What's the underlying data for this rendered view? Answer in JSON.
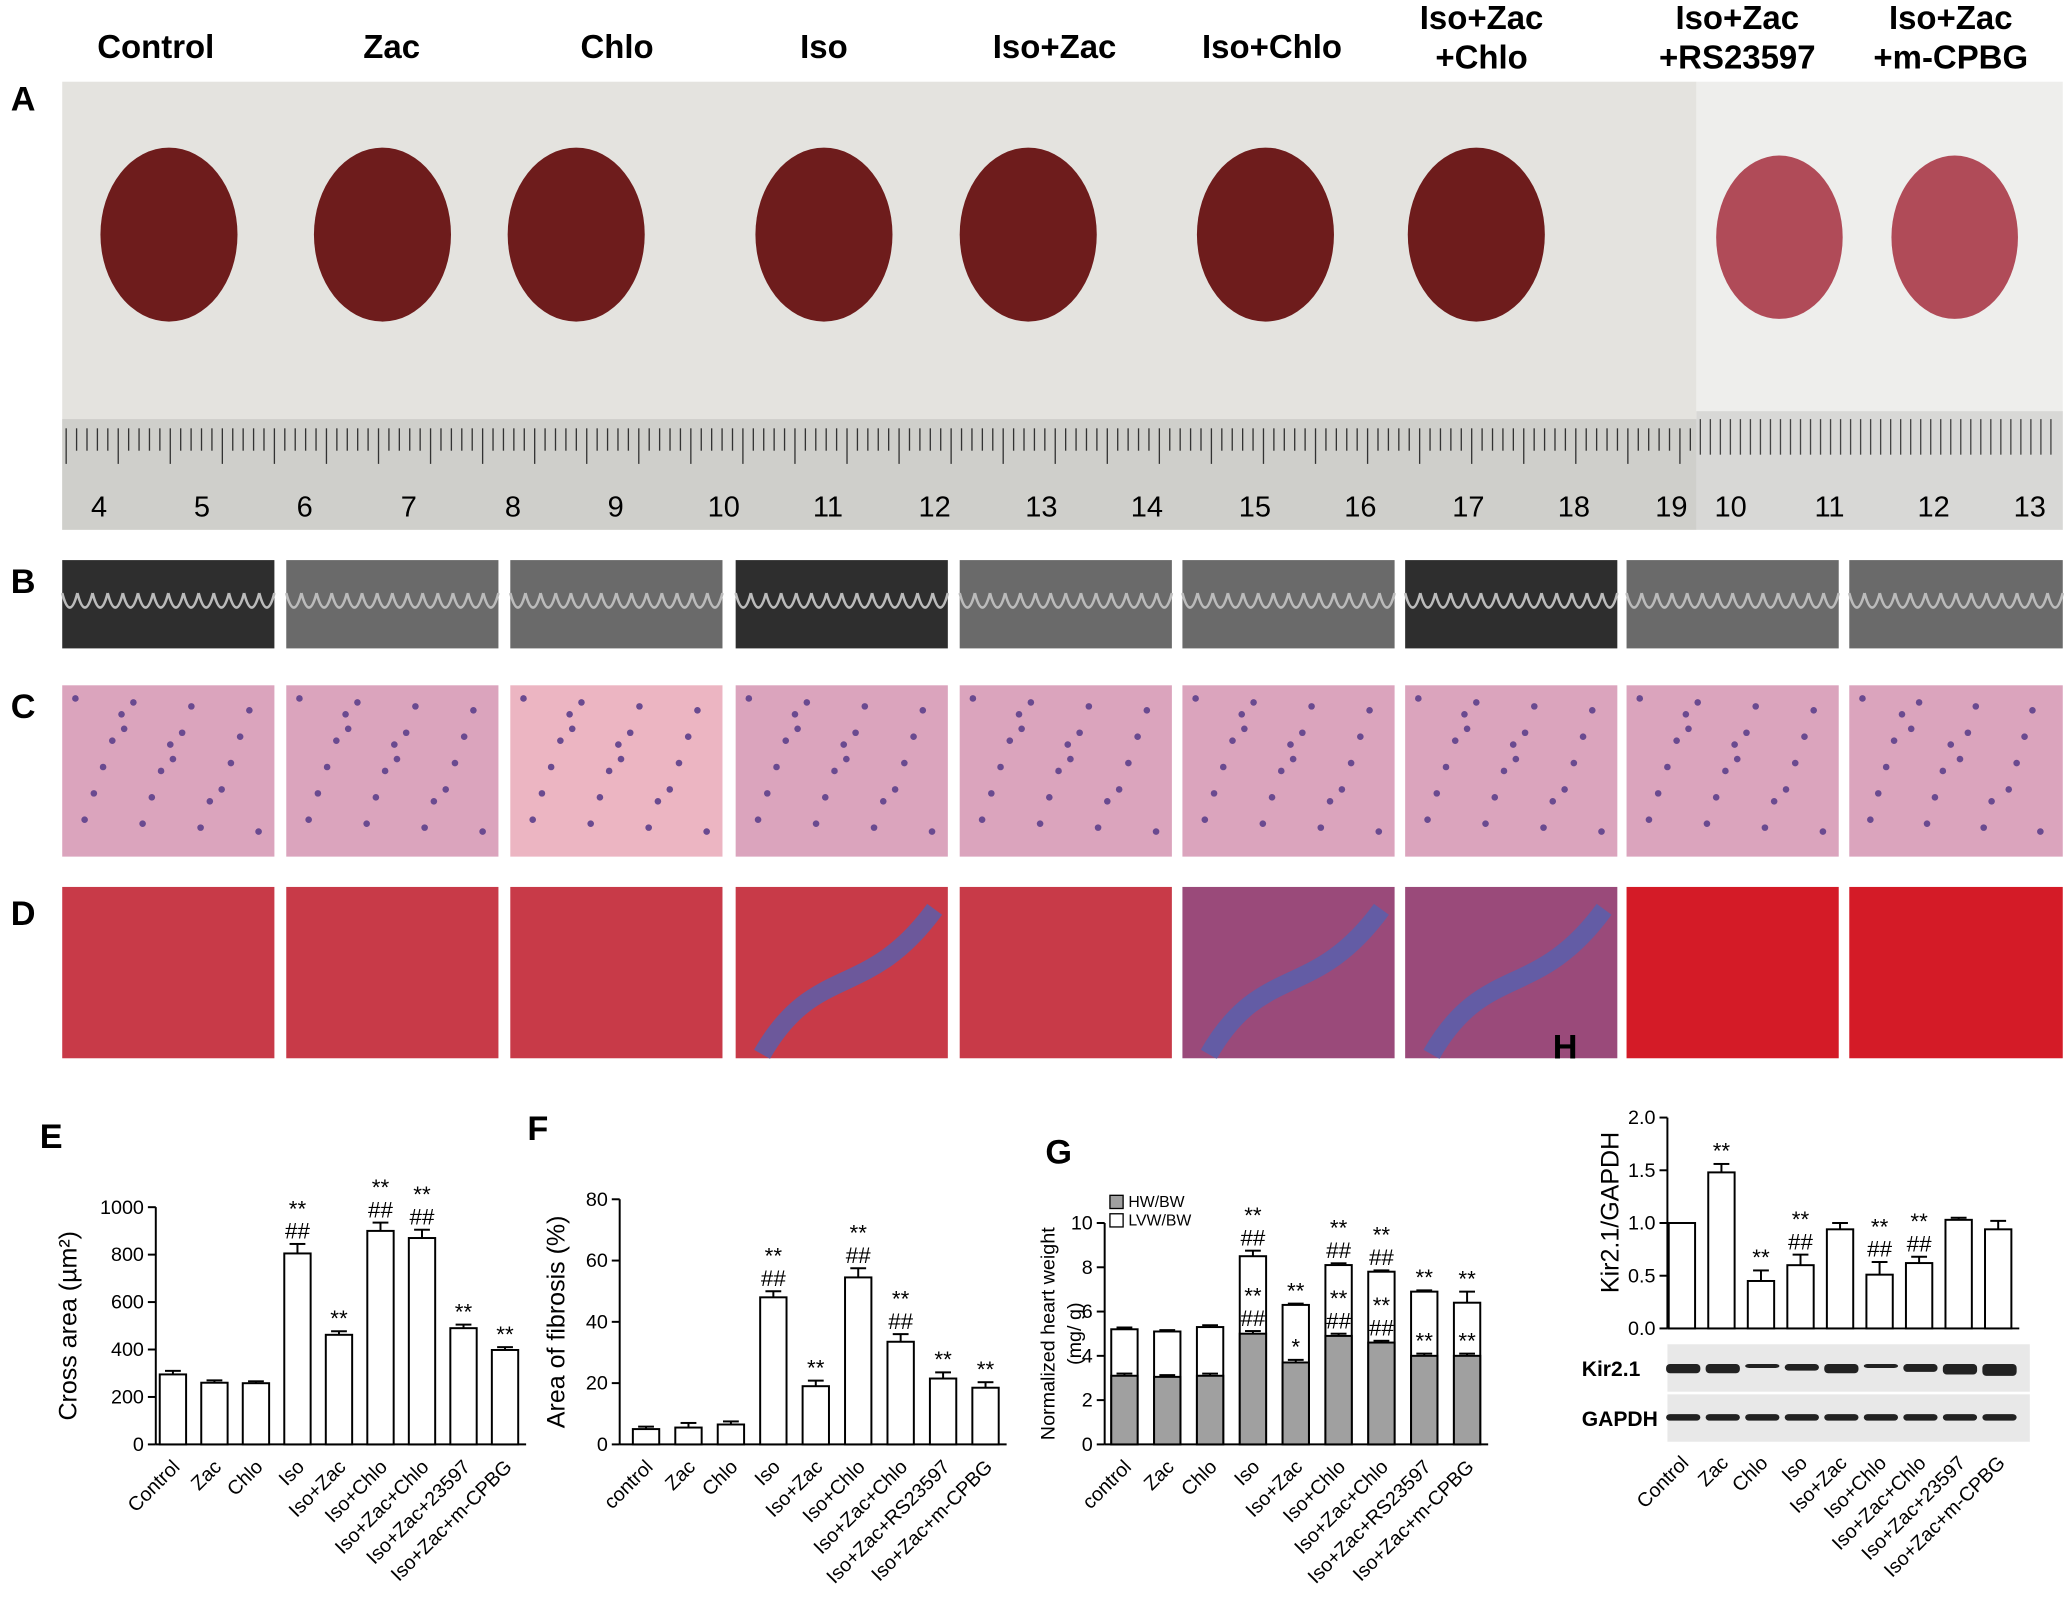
{
  "figure": {
    "groups": [
      [
        "Control"
      ],
      [
        "Zac"
      ],
      [
        "Chlo"
      ],
      [
        "Iso"
      ],
      [
        "Iso+Zac"
      ],
      [
        "Iso+Chlo"
      ],
      [
        "Iso+Zac",
        "+Chlo"
      ],
      [
        "Iso+Zac",
        "+RS23597"
      ],
      [
        "Iso+Zac",
        "+m-CPBG"
      ]
    ],
    "panel_labels": [
      "A",
      "B",
      "C",
      "D"
    ],
    "ruler_labels": [
      "4",
      "5",
      "6",
      "7",
      "8",
      "9",
      "10",
      "11",
      "12",
      "13",
      "14",
      "15",
      "16",
      "17",
      "18",
      "19",
      "10",
      "11",
      "12",
      "13"
    ]
  },
  "chart_data": [
    {
      "type": "bar",
      "panel": "E",
      "ylabel": [
        "Cross area (µm²)"
      ],
      "categories": [
        "Control",
        "Zac",
        "Chlo",
        "Iso",
        "Iso+Zac",
        "Iso+Chlo",
        "Iso+Zac+Chlo",
        "Iso+Zac+23597",
        "Iso+Zac+m-CPBG"
      ],
      "values": [
        295,
        260,
        258,
        805,
        462,
        900,
        870,
        490,
        398
      ],
      "errors": [
        15,
        10,
        8,
        40,
        15,
        35,
        35,
        15,
        12
      ],
      "color": "#ffffff",
      "significance": [
        null,
        null,
        null,
        [
          "**",
          "##"
        ],
        [
          "**"
        ],
        [
          "**",
          "##"
        ],
        [
          "**",
          "##"
        ],
        [
          "**"
        ],
        [
          "**"
        ]
      ],
      "ylim": [
        0,
        1000
      ],
      "yticks": [
        0,
        200,
        400,
        600,
        800,
        1000
      ]
    },
    {
      "type": "bar",
      "panel": "F",
      "ylabel": [
        "Area of fibrosis (%)"
      ],
      "categories": [
        "control",
        "Zac",
        "Chlo",
        "Iso",
        "Iso+Zac",
        "Iso+Chlo",
        "Iso+Zac+Chlo",
        "Iso+Zac+RS23597",
        "Iso+Zac+m-CPBG"
      ],
      "values": [
        5,
        5.5,
        6.5,
        48,
        19,
        54.5,
        33.5,
        21.5,
        18.5
      ],
      "errors": [
        0.8,
        1.5,
        1,
        2,
        1.8,
        3,
        2.5,
        2,
        1.8
      ],
      "color": "#ffffff",
      "significance": [
        null,
        null,
        null,
        [
          "**",
          "##"
        ],
        [
          "**"
        ],
        [
          "**",
          "##"
        ],
        [
          "**",
          "##"
        ],
        [
          "**"
        ],
        [
          "**"
        ]
      ],
      "ylim": [
        0,
        80
      ],
      "yticks": [
        0,
        20,
        40,
        60,
        80
      ]
    },
    {
      "type": "bar",
      "panel": "G",
      "ylabel": [
        "Normalized heart weight",
        "(mg/ g)"
      ],
      "categories": [
        "control",
        "Zac",
        "Chlo",
        "Iso",
        "Iso+Zac",
        "Iso+Chlo",
        "Iso+Zac+Chlo",
        "Iso+Zac+RS23597",
        "Iso+Zac+m-CPBG"
      ],
      "series": [
        {
          "name": "HW/BW",
          "color": "#a0a0a0",
          "values": [
            3.1,
            3.05,
            3.1,
            5.0,
            3.7,
            4.9,
            4.6,
            4.0,
            4.0
          ],
          "errors": [
            0.1,
            0.08,
            0.1,
            0.12,
            0.12,
            0.1,
            0.08,
            0.1,
            0.1
          ],
          "significance": [
            null,
            null,
            null,
            [
              "**",
              "##"
            ],
            [
              "*"
            ],
            [
              "**",
              "##"
            ],
            [
              "**",
              "##"
            ],
            [
              "**"
            ],
            [
              "**"
            ]
          ]
        },
        {
          "name": "LVW/BW",
          "color": "#ffffff",
          "values": [
            5.2,
            5.1,
            5.3,
            8.5,
            6.3,
            8.1,
            7.8,
            6.9,
            6.4
          ],
          "errors": [
            0.08,
            0.06,
            0.08,
            0.25,
            0.06,
            0.08,
            0.06,
            0.06,
            0.5
          ],
          "significance": [
            null,
            null,
            null,
            [
              "**",
              "##"
            ],
            [
              "**"
            ],
            [
              "**",
              "##"
            ],
            [
              "**",
              "##"
            ],
            [
              "**"
            ],
            [
              "**"
            ]
          ]
        }
      ],
      "ylim": [
        0,
        10
      ],
      "yticks": [
        0,
        2,
        4,
        6,
        8,
        10
      ]
    },
    {
      "type": "bar",
      "panel": "H",
      "ylabel": [
        "Kir2.1/GAPDH"
      ],
      "blot_labels": [
        "Kir2.1",
        "GAPDH"
      ],
      "categories": [
        "Control",
        "Zac",
        "Chlo",
        "Iso",
        "Iso+Zac",
        "Iso+Chlo",
        "Iso+Zac+Chlo",
        "Iso+Zac+23597",
        "Iso+Zac+m-CPBG"
      ],
      "values": [
        1.0,
        1.48,
        0.45,
        0.6,
        0.94,
        0.51,
        0.62,
        1.03,
        0.94
      ],
      "errors": [
        0,
        0.08,
        0.1,
        0.1,
        0.06,
        0.12,
        0.06,
        0.02,
        0.08
      ],
      "color": "#ffffff",
      "significance": [
        null,
        [
          "**"
        ],
        [
          "**"
        ],
        [
          "**",
          "##"
        ],
        null,
        [
          "**",
          "##"
        ],
        [
          "**",
          "##"
        ],
        null,
        null
      ],
      "ylim": [
        0,
        2.0
      ],
      "yticks": [
        {
          "value": 0,
          "label": "0.0"
        },
        {
          "value": 0.5,
          "label": "0.5"
        },
        {
          "value": 1.0,
          "label": "1.0"
        },
        {
          "value": 1.5,
          "label": "1.5"
        },
        {
          "value": 2.0,
          "label": "2.0"
        }
      ]
    }
  ]
}
